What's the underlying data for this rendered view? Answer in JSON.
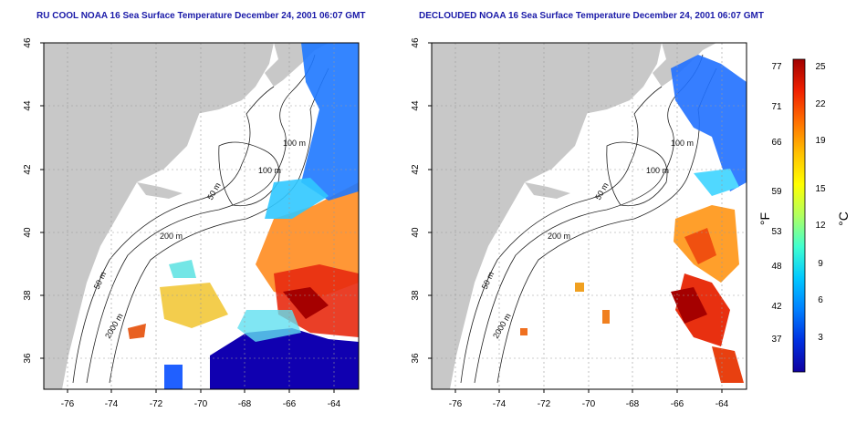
{
  "left_panel": {
    "title": "RU COOL NOAA 16 Sea Surface Temperature December 24, 2001 06:07 GMT"
  },
  "right_panel": {
    "title": "DECLOUDED NOAA 16 Sea Surface Temperature December 24, 2001 06:07 GMT"
  },
  "axes": {
    "x_ticks": [
      "-76",
      "-74",
      "-72",
      "-70",
      "-68",
      "-66",
      "-64"
    ],
    "y_ticks": [
      "36",
      "38",
      "40",
      "42",
      "44",
      "46"
    ]
  },
  "contour_labels": {
    "m100a": "100 m",
    "m100b": "100 m",
    "m50a": "50 m",
    "m200": "200 m",
    "m50b": "50 m",
    "m2000": "2000 m"
  },
  "colorbar": {
    "f_label": "°F",
    "c_label": "°C",
    "f_ticks": [
      "77",
      "71",
      "66",
      "59",
      "53",
      "48",
      "42",
      "37"
    ],
    "c_ticks": [
      "25",
      "22",
      "19",
      "15",
      "12",
      "9",
      "6",
      "3"
    ],
    "colors": [
      "#1000a0",
      "#0030e0",
      "#0080ff",
      "#00c8ff",
      "#40ffd0",
      "#b0ff60",
      "#ffff00",
      "#ffc000",
      "#ff7000",
      "#f02000",
      "#a00000"
    ]
  }
}
